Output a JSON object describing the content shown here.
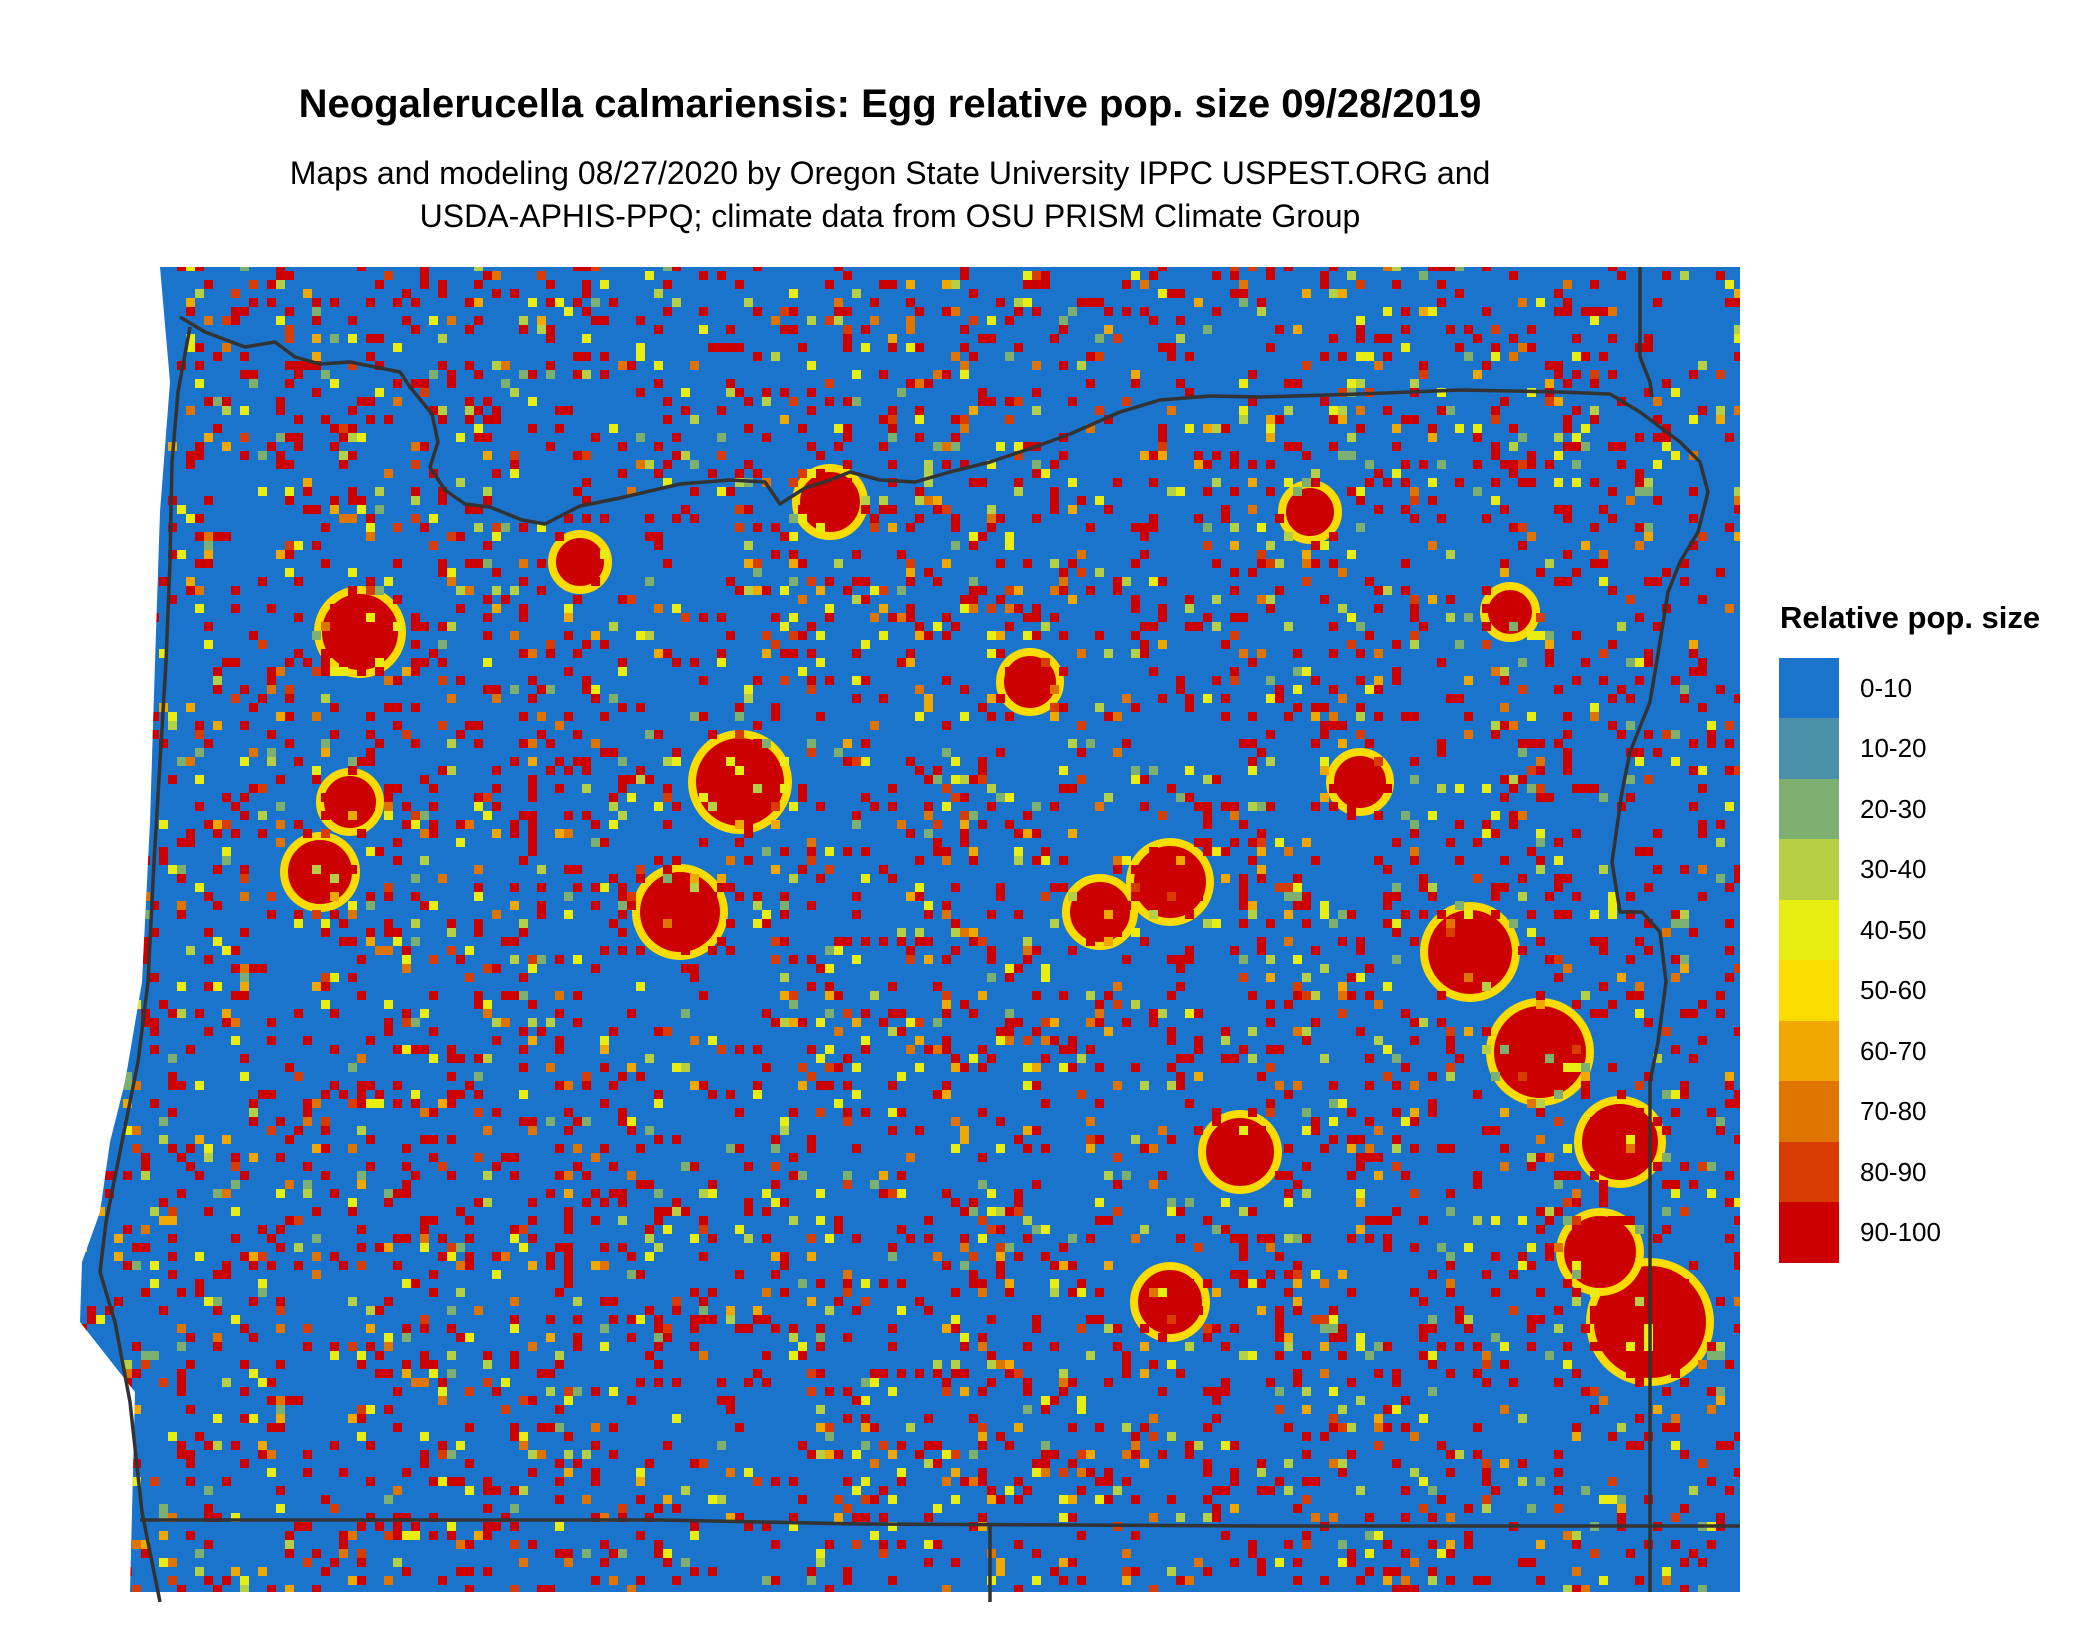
{
  "title": "Neogalerucella calmariensis: Egg relative pop. size 09/28/2019",
  "subtitle_line1": "Maps and modeling 08/27/2020 by Oregon State University IPPC USPEST.ORG and",
  "subtitle_line2": "USDA-APHIS-PPQ; climate data from OSU PRISM Climate Group",
  "legend": {
    "title": "Relative pop. size",
    "items": [
      {
        "label": "0-10",
        "color": "#1B74CC"
      },
      {
        "label": "10-20",
        "color": "#4A90A8"
      },
      {
        "label": "20-30",
        "color": "#7DB070"
      },
      {
        "label": "30-40",
        "color": "#B5D045"
      },
      {
        "label": "40-50",
        "color": "#E8EE12"
      },
      {
        "label": "50-60",
        "color": "#FADC00"
      },
      {
        "label": "60-70",
        "color": "#F0A800"
      },
      {
        "label": "70-80",
        "color": "#E07400"
      },
      {
        "label": "80-90",
        "color": "#D83C00"
      },
      {
        "label": "90-100",
        "color": "#CC0000"
      }
    ]
  }
}
